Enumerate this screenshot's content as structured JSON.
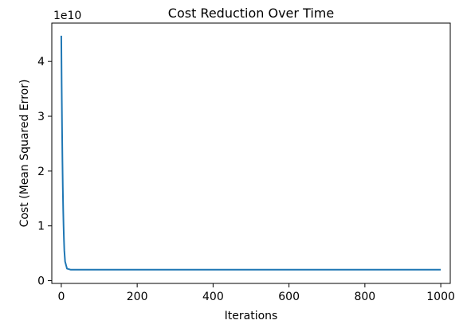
{
  "chart_data": {
    "type": "line",
    "title": "Cost Reduction Over Time",
    "xlabel": "Iterations",
    "ylabel": "Cost (Mean Squared Error)",
    "y_offset_label": "1e10",
    "xlim": [
      -25,
      1025
    ],
    "ylim": [
      -0.05,
      4.7
    ],
    "xticks": [
      0,
      200,
      400,
      600,
      800,
      1000
    ],
    "yticks": [
      0,
      1,
      2,
      3,
      4
    ],
    "grid": false,
    "series": [
      {
        "color": "#1f77b4",
        "x": [
          0,
          1,
          2,
          3,
          4,
          5,
          6,
          7,
          8,
          10,
          15,
          25,
          50,
          100,
          200,
          400,
          600,
          800,
          1000
        ],
        "y": [
          4.47,
          3.55,
          2.8,
          2.2,
          1.7,
          1.3,
          1.0,
          0.75,
          0.55,
          0.35,
          0.22,
          0.2,
          0.2,
          0.2,
          0.2,
          0.2,
          0.2,
          0.2,
          0.2
        ]
      }
    ]
  }
}
